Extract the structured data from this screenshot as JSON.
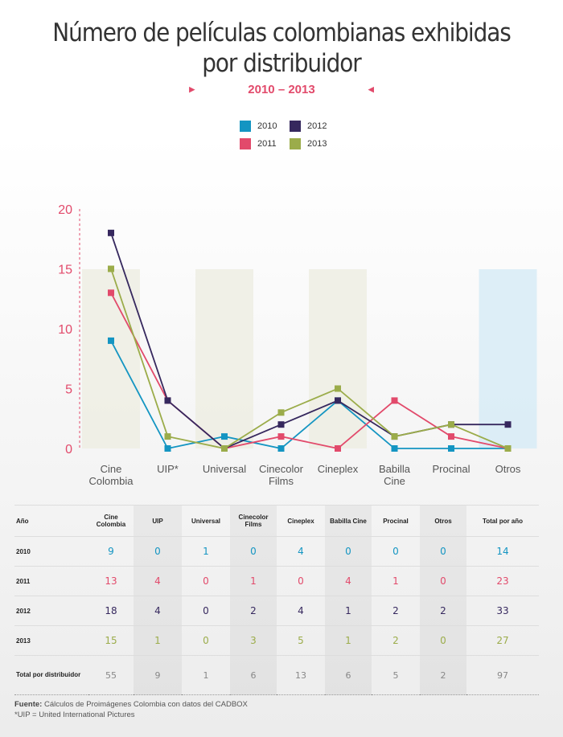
{
  "header": {
    "title_line1": "Número de películas colombianas exhibidas",
    "title_line2": "por distribuidor",
    "subtitle": "2010 – 2013",
    "arrow_left": "▶",
    "arrow_right": "◀"
  },
  "colors": {
    "2010": "#1495c2",
    "2011": "#e24a6b",
    "2012": "#36285e",
    "2013": "#9bac4a",
    "shade_green": "#eeeee2",
    "shade_blue": "#d9ecf6"
  },
  "legend": [
    {
      "label": "2010",
      "color": "#1495c2"
    },
    {
      "label": "2011",
      "color": "#e24a6b"
    },
    {
      "label": "2012",
      "color": "#36285e"
    },
    {
      "label": "2013",
      "color": "#9bac4a"
    }
  ],
  "chart_data": {
    "type": "line",
    "title": "Número de películas colombianas exhibidas por distribuidor",
    "subtitle": "2010 – 2013",
    "categories": [
      "Cine Colombia",
      "UIP*",
      "Universal",
      "Cinecolor Films",
      "Cineplex",
      "Babilla Cine",
      "Procinal",
      "Otros"
    ],
    "category_lines": [
      [
        "Cine",
        "Colombia"
      ],
      [
        "UIP*"
      ],
      [
        "Universal"
      ],
      [
        "Cinecolor",
        "Films"
      ],
      [
        "Cineplex"
      ],
      [
        "Babilla",
        "Cine"
      ],
      [
        "Procinal"
      ],
      [
        "Otros"
      ]
    ],
    "series": [
      {
        "name": "2010",
        "values": [
          9,
          0,
          1,
          0,
          4,
          0,
          0,
          0
        ],
        "color": "#1495c2"
      },
      {
        "name": "2011",
        "values": [
          13,
          4,
          0,
          1,
          0,
          4,
          1,
          0
        ],
        "color": "#e24a6b"
      },
      {
        "name": "2012",
        "values": [
          18,
          4,
          0,
          2,
          4,
          1,
          2,
          2
        ],
        "color": "#36285e"
      },
      {
        "name": "2013",
        "values": [
          15,
          1,
          0,
          3,
          5,
          1,
          2,
          0
        ],
        "color": "#9bac4a"
      }
    ],
    "ylim": [
      0,
      20
    ],
    "yticks": [
      0,
      5,
      10,
      15,
      20
    ],
    "xlabel": "",
    "ylabel": "",
    "grid": false,
    "legend_position": "top-center"
  },
  "table": {
    "headers": [
      "Año",
      "Cine Colombia",
      "UIP",
      "Universal",
      "Cinecolor Films",
      "Cineplex",
      "Babilla Cine",
      "Procinal",
      "Otros",
      "Total por año"
    ],
    "rows": [
      {
        "label": "2010",
        "values": [
          "9",
          "0",
          "1",
          "0",
          "4",
          "0",
          "0",
          "0",
          "14"
        ],
        "color": "#1495c2"
      },
      {
        "label": "2011",
        "values": [
          "13",
          "4",
          "0",
          "1",
          "0",
          "4",
          "1",
          "0",
          "23"
        ],
        "color": "#e24a6b"
      },
      {
        "label": "2012",
        "values": [
          "18",
          "4",
          "0",
          "2",
          "4",
          "1",
          "2",
          "2",
          "33"
        ],
        "color": "#36285e"
      },
      {
        "label": "2013",
        "values": [
          "15",
          "1",
          "0",
          "3",
          "5",
          "1",
          "2",
          "0",
          "27"
        ],
        "color": "#9bac4a"
      }
    ],
    "total": {
      "label": "Total por distribuidor",
      "values": [
        "55",
        "9",
        "1",
        "6",
        "13",
        "6",
        "5",
        "2",
        "97"
      ]
    }
  },
  "footer": {
    "source_label": "Fuente:",
    "source_text": "Cálculos de Proimágenes Colombia con datos del CADBOX",
    "note": "*UIP = United International Pictures"
  }
}
